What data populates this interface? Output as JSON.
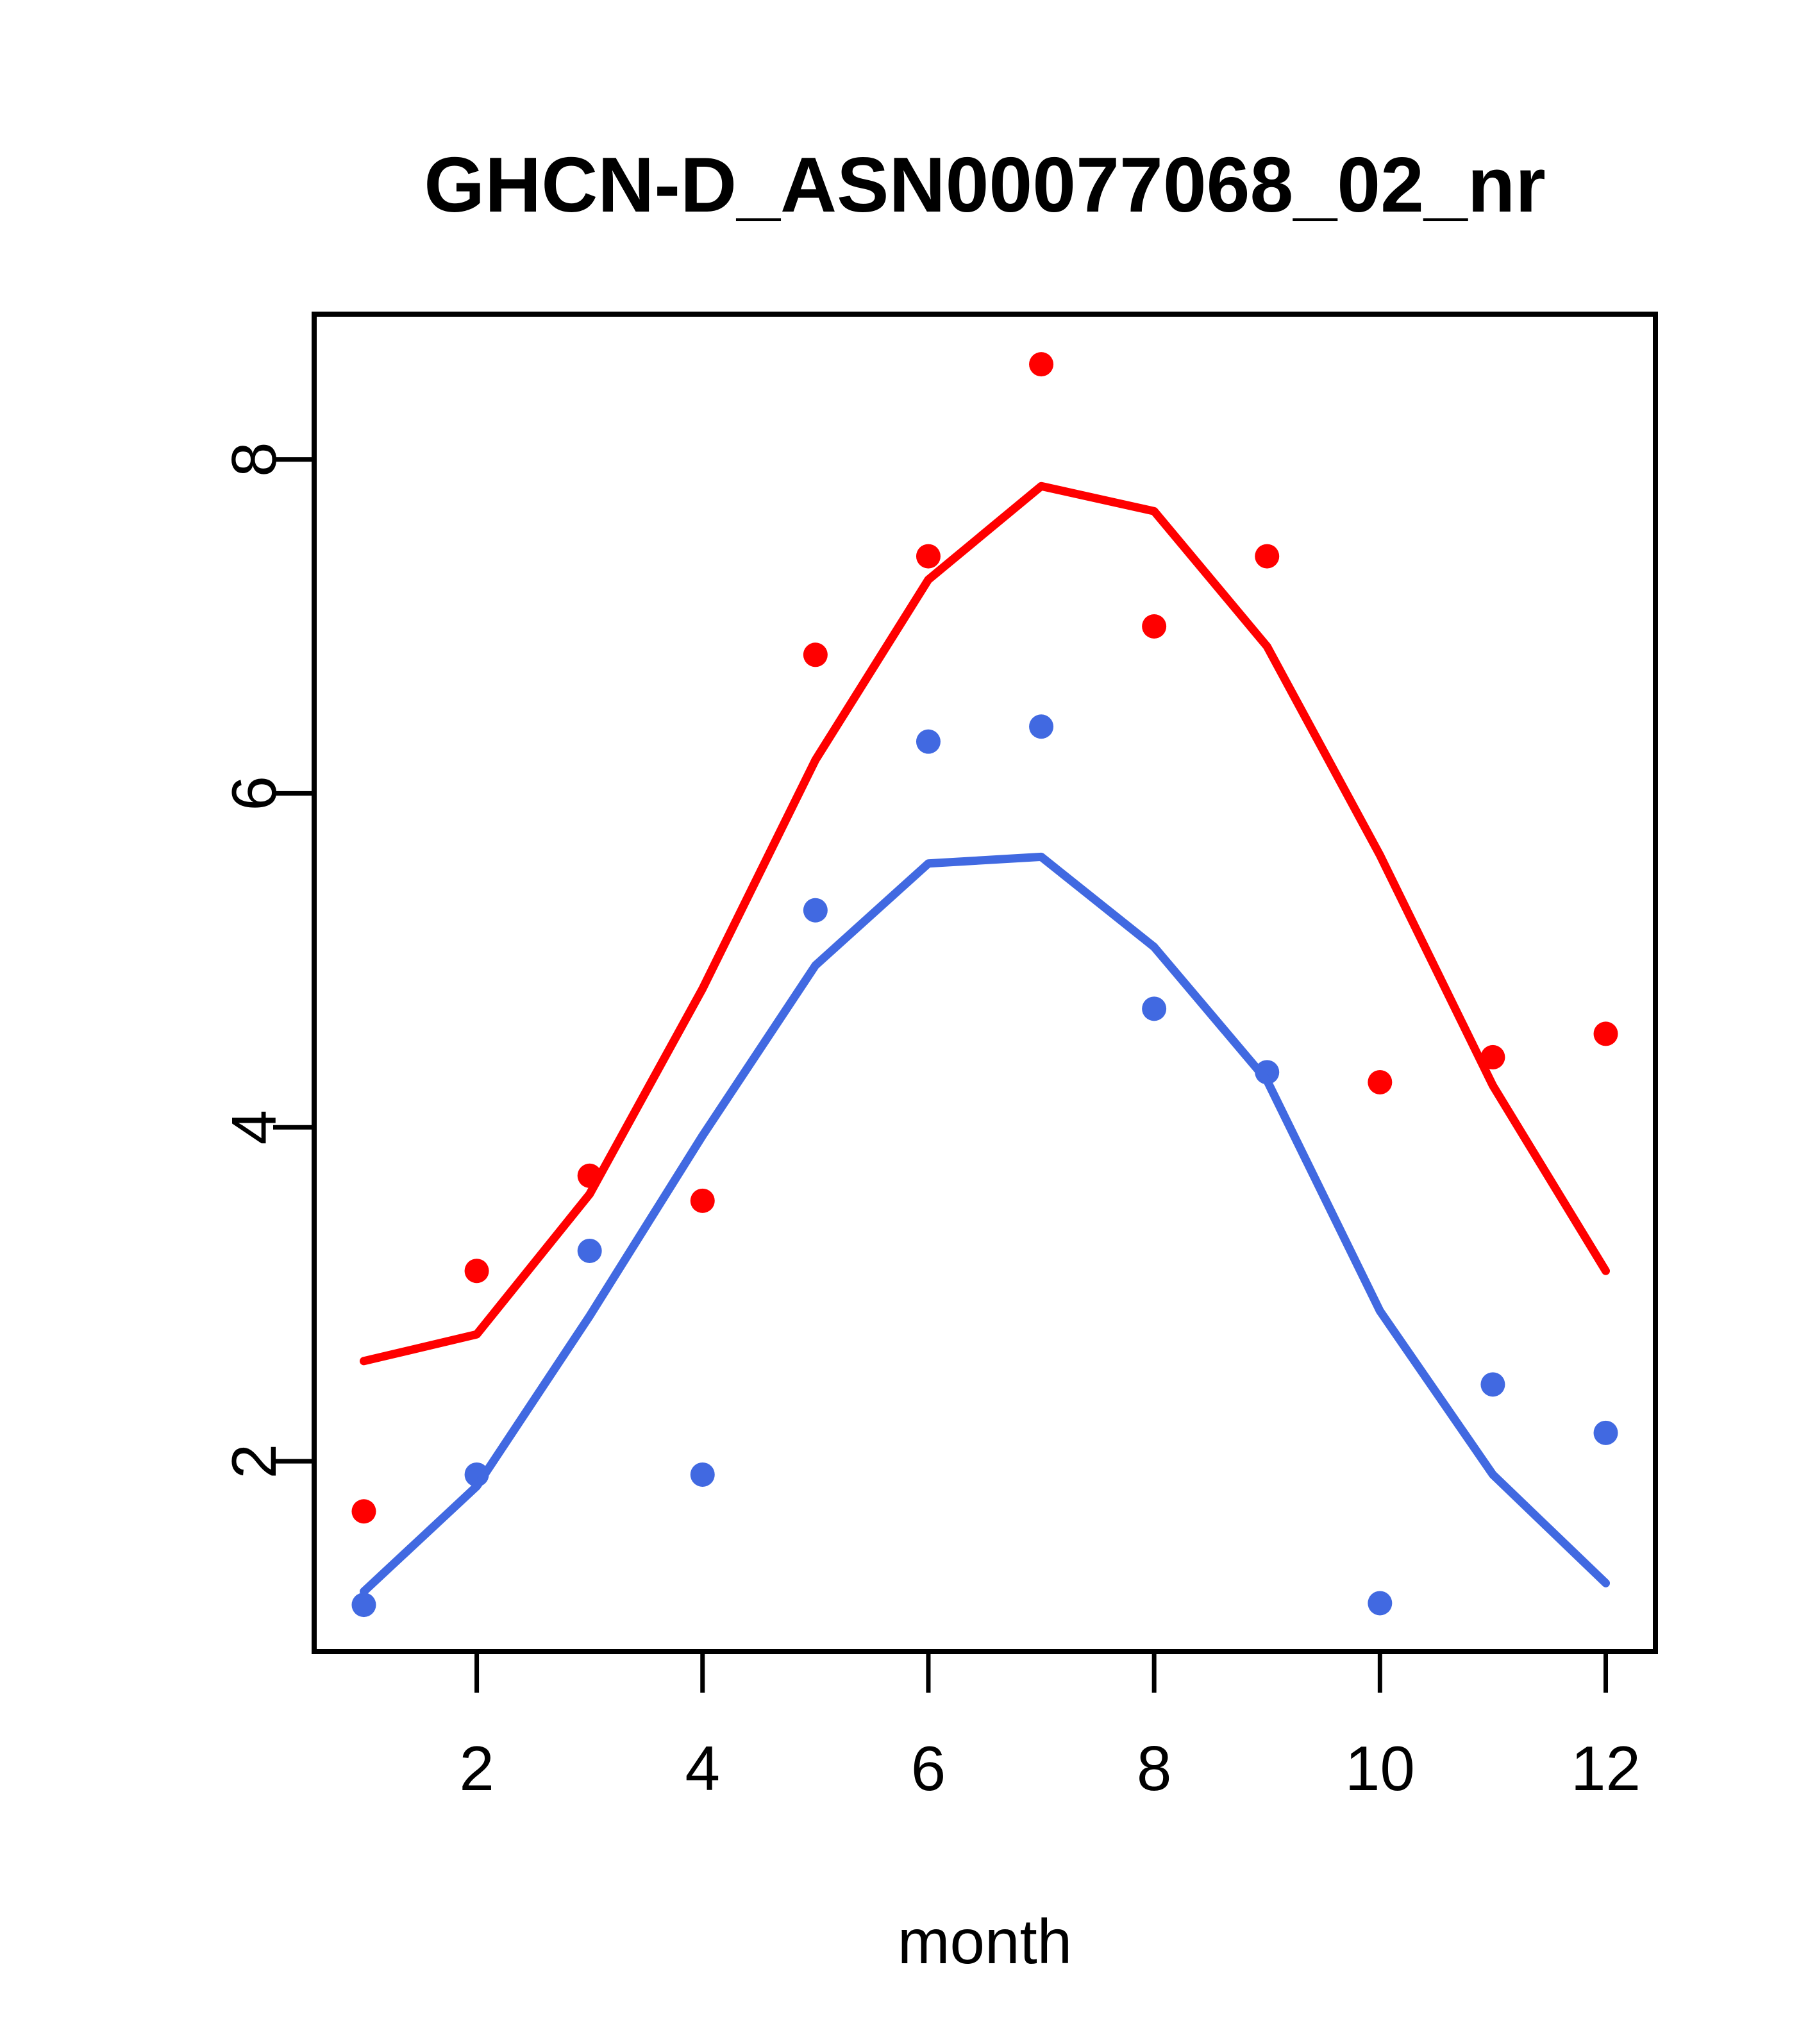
{
  "title": "GHCN-D_ASN00077068_02_nr",
  "colors": {
    "red_series": "#FF0000",
    "blue_series": "#4169E1",
    "axis": "#000000",
    "background": "#FFFFFF"
  },
  "chart_data": {
    "type": "scatter",
    "title": "GHCN-D_ASN00077068_02_nr",
    "xlabel": "month",
    "ylabel": "",
    "grid": false,
    "legend_position": "none",
    "x": [
      1,
      2,
      3,
      4,
      5,
      6,
      7,
      8,
      9,
      10,
      11,
      12
    ],
    "xticks": [
      2,
      4,
      6,
      8,
      10,
      12
    ],
    "yticks": [
      2,
      4,
      6,
      8
    ],
    "xlim": [
      0.56,
      12.44
    ],
    "ylim": [
      0.86,
      8.87
    ],
    "series": [
      {
        "name": "red points (monthly values)",
        "kind": "points",
        "color": "#FF0000",
        "values": [
          1.7,
          3.14,
          3.71,
          3.56,
          6.83,
          7.42,
          8.57,
          7.0,
          7.42,
          4.27,
          4.42,
          4.56
        ]
      },
      {
        "name": "blue points (monthly values)",
        "kind": "points",
        "color": "#4169E1",
        "values": [
          1.14,
          1.92,
          3.26,
          1.92,
          5.3,
          6.31,
          6.4,
          4.71,
          4.33,
          1.15,
          2.46,
          2.17
        ]
      },
      {
        "name": "red smooth line",
        "kind": "line",
        "color": "#FF0000",
        "values": [
          2.6,
          2.76,
          3.6,
          4.83,
          6.2,
          7.28,
          7.84,
          7.69,
          6.88,
          5.63,
          4.25,
          3.14
        ]
      },
      {
        "name": "blue smooth line",
        "kind": "line",
        "color": "#4169E1",
        "values": [
          1.22,
          1.85,
          2.87,
          3.95,
          4.97,
          5.58,
          5.62,
          5.08,
          4.28,
          2.9,
          1.92,
          1.27
        ]
      }
    ]
  },
  "layout_note_values_are_data_not_pixels": true
}
